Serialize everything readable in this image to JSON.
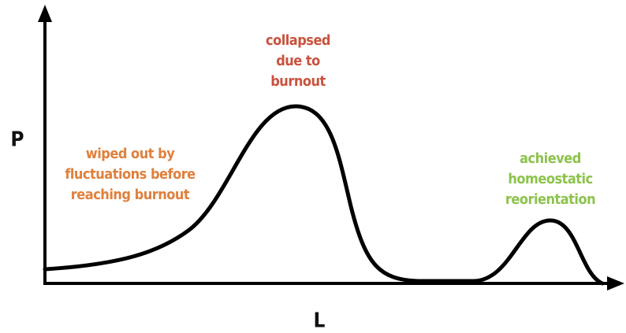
{
  "y_axis_label": "P",
  "x_axis_label": "L",
  "annotations": [
    {
      "lines": [
        "wiped out by",
        "fluctuations before",
        "reaching burnout"
      ]
    },
    {
      "lines": [
        "collapsed",
        "due to",
        "burnout"
      ]
    },
    {
      "lines": [
        "achieved",
        "homeostatic",
        "reorientation"
      ]
    }
  ]
}
